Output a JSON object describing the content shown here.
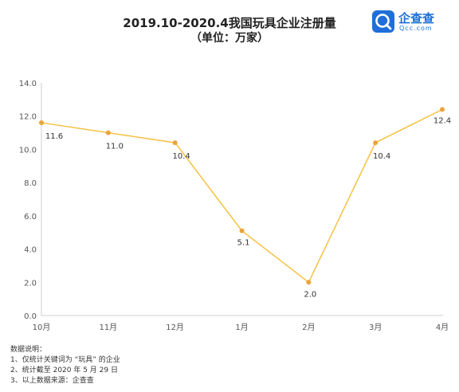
{
  "title": "2019.10-2020.4我国玩具企业注册量",
  "subtitle": "（单位：万家）",
  "logo": {
    "name": "企查查",
    "domain": "Qcc.com"
  },
  "notes": {
    "heading": "数据说明：",
    "lines": [
      "1、仅统计关键词为 “玩具” 的企业",
      "2、统计截至 2020 年 5 月 29 日",
      "3、以上数据来源：企查查"
    ]
  },
  "chart_data": {
    "type": "line",
    "categories": [
      "10月",
      "11月",
      "12月",
      "1月",
      "2月",
      "3月",
      "4月"
    ],
    "values": [
      11.6,
      11.0,
      10.4,
      5.1,
      2.0,
      10.4,
      12.4
    ],
    "data_labels": [
      "11.6",
      "11.0",
      "10.4",
      "5.1",
      "2.0",
      "10.4",
      "12.4"
    ],
    "yticks": [
      "0.0",
      "2.0",
      "4.0",
      "6.0",
      "8.0",
      "10.0",
      "12.0",
      "14.0"
    ],
    "ylim": [
      0,
      14
    ],
    "grid": false,
    "line_color": "#f5c242",
    "marker_color": "#eba43c",
    "axis_color": "#cccccc"
  }
}
